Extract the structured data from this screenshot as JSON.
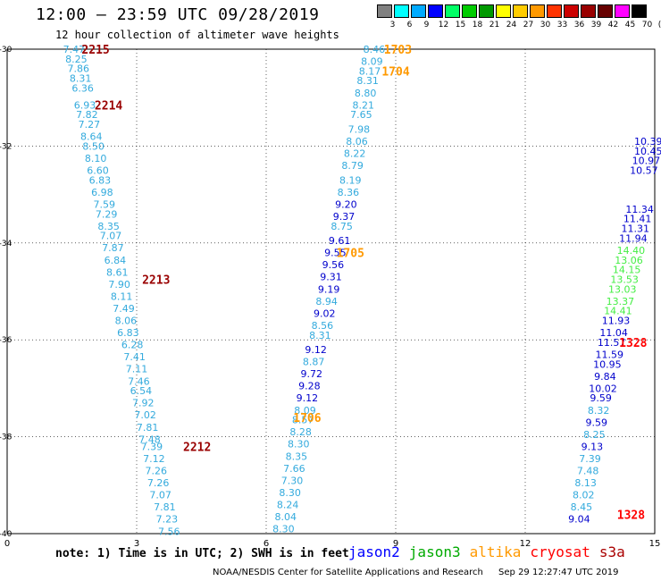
{
  "title": "12:00 – 23:59 UTC 09/28/2019",
  "subtitle": "12 hour collection of altimeter wave heights",
  "colorbar": {
    "labels": [
      "3",
      "6",
      "9",
      "12",
      "15",
      "18",
      "21",
      "24",
      "27",
      "30",
      "33",
      "36",
      "39",
      "42",
      "45",
      "70",
      "(ft)"
    ],
    "colors": [
      "#808080",
      "#00ffff",
      "#00aaff",
      "#0000ff",
      "#00ff66",
      "#00cc00",
      "#009900",
      "#ffff00",
      "#ffcc00",
      "#ff9900",
      "#ff3300",
      "#cc0000",
      "#990000",
      "#660000",
      "#ff00ff",
      "#000000"
    ]
  },
  "note": "note: 1) Time is in UTC; 2) SWH is in feet",
  "legend": [
    {
      "label": "jason2",
      "color": "#0000ff"
    },
    {
      "label": "jason3",
      "color": "#00aa00"
    },
    {
      "label": "altika",
      "color": "#ff9900"
    },
    {
      "label": "cryosat",
      "color": "#ff0000"
    },
    {
      "label": "s3a",
      "color": "#aa0000"
    }
  ],
  "footer": {
    "credit": "NOAA/NESDIS Center for Satellite Applications and Research",
    "timestamp": "Sep 29 12:27:47 UTC 2019"
  },
  "chart_data": {
    "type": "scatter",
    "xlim": [
      0,
      15
    ],
    "ylim": [
      -40,
      -30
    ],
    "x_ticks": [
      "0",
      "3",
      "6",
      "9",
      "12",
      "15"
    ],
    "y_ticks": [
      "-30",
      "-32",
      "-34",
      "-36",
      "-38",
      "-40"
    ],
    "grid": true,
    "tracks": [
      {
        "color": "#33aadd",
        "orbits": [
          {
            "label": "2215",
            "lon": 2.05,
            "lat": -30.0,
            "color": "#990000"
          },
          {
            "label": "2214",
            "lon": 2.35,
            "lat": -31.15,
            "color": "#990000"
          },
          {
            "label": "2213",
            "lon": 3.45,
            "lat": -34.75,
            "color": "#990000"
          },
          {
            "label": "2212",
            "lon": 4.4,
            "lat": -38.2,
            "color": "#990000"
          }
        ],
        "points": [
          {
            "lon": 1.55,
            "lat": -30.0,
            "swh": "7.47"
          },
          {
            "lon": 1.6,
            "lat": -30.2,
            "swh": "8.25"
          },
          {
            "lon": 1.65,
            "lat": -30.4,
            "swh": "7.86"
          },
          {
            "lon": 1.7,
            "lat": -30.6,
            "swh": "8.31"
          },
          {
            "lon": 1.75,
            "lat": -30.8,
            "swh": "6.36"
          },
          {
            "lon": 1.8,
            "lat": -31.15,
            "swh": "6.93"
          },
          {
            "lon": 1.85,
            "lat": -31.35,
            "swh": "7.82"
          },
          {
            "lon": 1.9,
            "lat": -31.55,
            "swh": "7.27"
          },
          {
            "lon": 1.95,
            "lat": -31.8,
            "swh": "8.64"
          },
          {
            "lon": 2.0,
            "lat": -32.0,
            "swh": "8.50"
          },
          {
            "lon": 2.05,
            "lat": -32.25,
            "swh": "8.10"
          },
          {
            "lon": 2.1,
            "lat": -32.5,
            "swh": "6.60"
          },
          {
            "lon": 2.15,
            "lat": -32.7,
            "swh": "6.83"
          },
          {
            "lon": 2.2,
            "lat": -32.95,
            "swh": "6.98"
          },
          {
            "lon": 2.25,
            "lat": -33.2,
            "swh": "7.59"
          },
          {
            "lon": 2.3,
            "lat": -33.4,
            "swh": "7.29"
          },
          {
            "lon": 2.35,
            "lat": -33.65,
            "swh": "8.35"
          },
          {
            "lon": 2.4,
            "lat": -33.85,
            "swh": "7.07"
          },
          {
            "lon": 2.45,
            "lat": -34.1,
            "swh": "7.87"
          },
          {
            "lon": 2.5,
            "lat": -34.35,
            "swh": "6.84"
          },
          {
            "lon": 2.55,
            "lat": -34.6,
            "swh": "8.61"
          },
          {
            "lon": 2.6,
            "lat": -34.85,
            "swh": "7.90"
          },
          {
            "lon": 2.65,
            "lat": -35.1,
            "swh": "8.11"
          },
          {
            "lon": 2.7,
            "lat": -35.35,
            "swh": "7.49"
          },
          {
            "lon": 2.75,
            "lat": -35.6,
            "swh": "8.06"
          },
          {
            "lon": 2.8,
            "lat": -35.85,
            "swh": "6.83"
          },
          {
            "lon": 2.9,
            "lat": -36.1,
            "swh": "6.28"
          },
          {
            "lon": 2.95,
            "lat": -36.35,
            "swh": "7.41"
          },
          {
            "lon": 3.0,
            "lat": -36.6,
            "swh": "7.11"
          },
          {
            "lon": 3.05,
            "lat": -36.85,
            "swh": "7.46"
          },
          {
            "lon": 3.1,
            "lat": -37.05,
            "swh": "6.54"
          },
          {
            "lon": 3.15,
            "lat": -37.3,
            "swh": "7.92"
          },
          {
            "lon": 3.2,
            "lat": -37.55,
            "swh": "7.02"
          },
          {
            "lon": 3.25,
            "lat": -37.8,
            "swh": "7.81"
          },
          {
            "lon": 3.3,
            "lat": -38.05,
            "swh": "7.48"
          },
          {
            "lon": 3.35,
            "lat": -38.2,
            "swh": "7.39"
          },
          {
            "lon": 3.4,
            "lat": -38.45,
            "swh": "7.12"
          },
          {
            "lon": 3.45,
            "lat": -38.7,
            "swh": "7.26"
          },
          {
            "lon": 3.5,
            "lat": -38.95,
            "swh": "7.26"
          },
          {
            "lon": 3.55,
            "lat": -39.2,
            "swh": "7.07"
          },
          {
            "lon": 3.65,
            "lat": -39.45,
            "swh": "7.81"
          },
          {
            "lon": 3.7,
            "lat": -39.7,
            "swh": "7.23"
          },
          {
            "lon": 3.75,
            "lat": -39.95,
            "swh": "7.56"
          }
        ]
      },
      {
        "color": "#33aadd",
        "orbits": [
          {
            "label": "1703",
            "lon": 9.05,
            "lat": -30.0,
            "color": "#ff9900"
          },
          {
            "label": "1704",
            "lon": 9.0,
            "lat": -30.45,
            "color": "#ff9900"
          },
          {
            "label": "1705",
            "lon": 7.95,
            "lat": -34.2,
            "color": "#ff9900"
          },
          {
            "label": "1706",
            "lon": 6.95,
            "lat": -37.6,
            "color": "#ff9900"
          }
        ],
        "points": [
          {
            "lon": 8.5,
            "lat": -30.0,
            "swh": "8.46"
          },
          {
            "lon": 8.45,
            "lat": -30.25,
            "swh": "8.09"
          },
          {
            "lon": 8.4,
            "lat": -30.45,
            "swh": "8.17"
          },
          {
            "lon": 8.35,
            "lat": -30.65,
            "swh": "8.31"
          },
          {
            "lon": 8.3,
            "lat": -30.9,
            "swh": "8.80"
          },
          {
            "lon": 8.25,
            "lat": -31.15,
            "swh": "8.21"
          },
          {
            "lon": 8.2,
            "lat": -31.35,
            "swh": "7.65"
          },
          {
            "lon": 8.15,
            "lat": -31.65,
            "swh": "7.98"
          },
          {
            "lon": 8.1,
            "lat": -31.9,
            "swh": "8.06"
          },
          {
            "lon": 8.05,
            "lat": -32.15,
            "swh": "8.22"
          },
          {
            "lon": 8.0,
            "lat": -32.4,
            "swh": "8.79"
          },
          {
            "lon": 7.95,
            "lat": -32.7,
            "swh": "8.19"
          },
          {
            "lon": 7.9,
            "lat": -32.95,
            "swh": "8.36"
          },
          {
            "lon": 7.85,
            "lat": -33.2,
            "swh": "9.20",
            "color": "#0000cc"
          },
          {
            "lon": 7.8,
            "lat": -33.45,
            "swh": "9.37",
            "color": "#0000cc"
          },
          {
            "lon": 7.75,
            "lat": -33.65,
            "swh": "8.75"
          },
          {
            "lon": 7.7,
            "lat": -33.95,
            "swh": "9.61",
            "color": "#0000cc"
          },
          {
            "lon": 7.6,
            "lat": -34.2,
            "swh": "9.55",
            "color": "#0000cc"
          },
          {
            "lon": 7.55,
            "lat": -34.45,
            "swh": "9.56",
            "color": "#0000cc"
          },
          {
            "lon": 7.5,
            "lat": -34.7,
            "swh": "9.31",
            "color": "#0000cc"
          },
          {
            "lon": 7.45,
            "lat": -34.95,
            "swh": "9.19",
            "color": "#0000cc"
          },
          {
            "lon": 7.4,
            "lat": -35.2,
            "swh": "8.94"
          },
          {
            "lon": 7.35,
            "lat": -35.45,
            "swh": "9.02",
            "color": "#0000cc"
          },
          {
            "lon": 7.3,
            "lat": -35.7,
            "swh": "8.56"
          },
          {
            "lon": 7.25,
            "lat": -35.9,
            "swh": "8.31"
          },
          {
            "lon": 7.15,
            "lat": -36.2,
            "swh": "9.12",
            "color": "#0000cc"
          },
          {
            "lon": 7.1,
            "lat": -36.45,
            "swh": "8.87"
          },
          {
            "lon": 7.05,
            "lat": -36.7,
            "swh": "9.72",
            "color": "#0000cc"
          },
          {
            "lon": 7.0,
            "lat": -36.95,
            "swh": "9.28",
            "color": "#0000cc"
          },
          {
            "lon": 6.95,
            "lat": -37.2,
            "swh": "9.12",
            "color": "#0000cc"
          },
          {
            "lon": 6.9,
            "lat": -37.45,
            "swh": "8.09"
          },
          {
            "lon": 6.85,
            "lat": -37.65,
            "swh": "8.57"
          },
          {
            "lon": 6.8,
            "lat": -37.9,
            "swh": "8.28"
          },
          {
            "lon": 6.75,
            "lat": -38.15,
            "swh": "8.30"
          },
          {
            "lon": 6.7,
            "lat": -38.4,
            "swh": "8.35"
          },
          {
            "lon": 6.65,
            "lat": -38.65,
            "swh": "7.66"
          },
          {
            "lon": 6.6,
            "lat": -38.9,
            "swh": "7.30"
          },
          {
            "lon": 6.55,
            "lat": -39.15,
            "swh": "8.30"
          },
          {
            "lon": 6.5,
            "lat": -39.4,
            "swh": "8.24"
          },
          {
            "lon": 6.45,
            "lat": -39.65,
            "swh": "8.04"
          },
          {
            "lon": 6.4,
            "lat": -39.9,
            "swh": "8.30"
          }
        ]
      },
      {
        "color": "#0000cc",
        "orbits": [
          {
            "label": "1328",
            "lon": 14.5,
            "lat": -36.05,
            "color": "#ff0000"
          },
          {
            "label": "1328",
            "lon": 14.45,
            "lat": -39.6,
            "color": "#ff0000"
          }
        ],
        "points": [
          {
            "lon": 14.85,
            "lat": -31.9,
            "swh": "10.39"
          },
          {
            "lon": 14.85,
            "lat": -32.1,
            "swh": "10.45"
          },
          {
            "lon": 14.8,
            "lat": -32.3,
            "swh": "10.97"
          },
          {
            "lon": 14.75,
            "lat": -32.5,
            "swh": "10.57"
          },
          {
            "lon": 14.65,
            "lat": -33.3,
            "swh": "11.34"
          },
          {
            "lon": 14.6,
            "lat": -33.5,
            "swh": "11.41"
          },
          {
            "lon": 14.55,
            "lat": -33.7,
            "swh": "11.31"
          },
          {
            "lon": 14.5,
            "lat": -33.9,
            "swh": "11.94"
          },
          {
            "lon": 14.45,
            "lat": -34.15,
            "swh": "14.40",
            "color": "#44ee44"
          },
          {
            "lon": 14.4,
            "lat": -34.35,
            "swh": "13.06",
            "color": "#44ee44"
          },
          {
            "lon": 14.35,
            "lat": -34.55,
            "swh": "14.15",
            "color": "#44ee44"
          },
          {
            "lon": 14.3,
            "lat": -34.75,
            "swh": "13.53",
            "color": "#44ee44"
          },
          {
            "lon": 14.25,
            "lat": -34.95,
            "swh": "13.03",
            "color": "#44ee44"
          },
          {
            "lon": 14.2,
            "lat": -35.2,
            "swh": "13.37",
            "color": "#44ee44"
          },
          {
            "lon": 14.15,
            "lat": -35.4,
            "swh": "14.41",
            "color": "#44ee44"
          },
          {
            "lon": 14.1,
            "lat": -35.6,
            "swh": "11.93"
          },
          {
            "lon": 14.05,
            "lat": -35.85,
            "swh": "11.04"
          },
          {
            "lon": 14.0,
            "lat": -36.05,
            "swh": "11.57"
          },
          {
            "lon": 13.95,
            "lat": -36.3,
            "swh": "11.59"
          },
          {
            "lon": 13.9,
            "lat": -36.5,
            "swh": "10.95"
          },
          {
            "lon": 13.85,
            "lat": -36.75,
            "swh": "9.84"
          },
          {
            "lon": 13.8,
            "lat": -37.0,
            "swh": "10.02"
          },
          {
            "lon": 13.75,
            "lat": -37.2,
            "swh": "9.59"
          },
          {
            "lon": 13.7,
            "lat": -37.45,
            "swh": "8.32",
            "color": "#33aadd"
          },
          {
            "lon": 13.65,
            "lat": -37.7,
            "swh": "9.59"
          },
          {
            "lon": 13.6,
            "lat": -37.95,
            "swh": "8.25",
            "color": "#33aadd"
          },
          {
            "lon": 13.55,
            "lat": -38.2,
            "swh": "9.13"
          },
          {
            "lon": 13.5,
            "lat": -38.45,
            "swh": "7.39",
            "color": "#33aadd"
          },
          {
            "lon": 13.45,
            "lat": -38.7,
            "swh": "7.48",
            "color": "#33aadd"
          },
          {
            "lon": 13.4,
            "lat": -38.95,
            "swh": "8.13",
            "color": "#33aadd"
          },
          {
            "lon": 13.35,
            "lat": -39.2,
            "swh": "8.02",
            "color": "#33aadd"
          },
          {
            "lon": 13.3,
            "lat": -39.45,
            "swh": "8.45",
            "color": "#33aadd"
          },
          {
            "lon": 13.25,
            "lat": -39.7,
            "swh": "9.04"
          }
        ]
      }
    ]
  }
}
